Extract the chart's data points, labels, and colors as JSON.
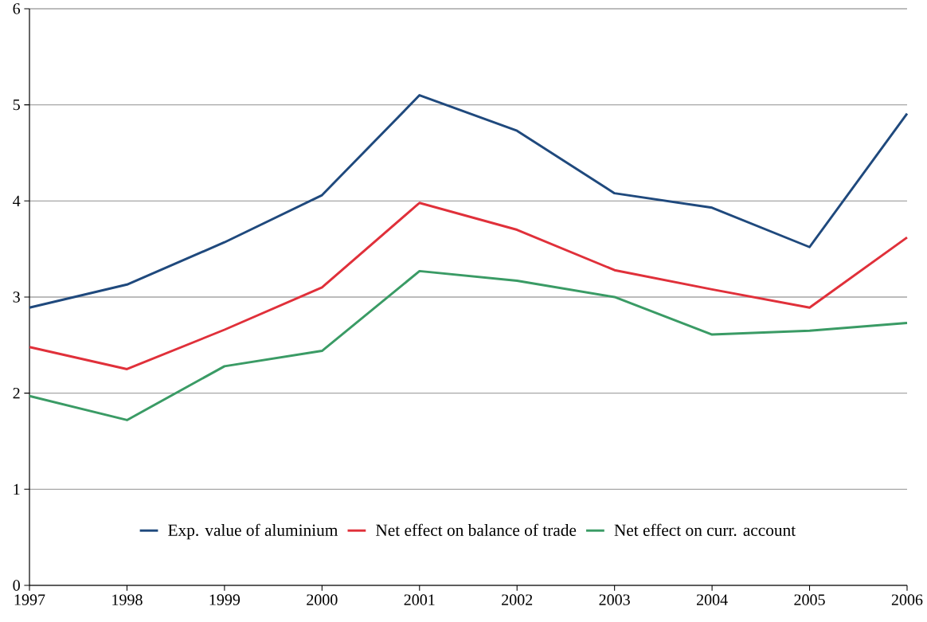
{
  "chart_data": {
    "type": "line",
    "x": [
      1997,
      1998,
      1999,
      2000,
      2001,
      2002,
      2003,
      2004,
      2005,
      2006
    ],
    "xlim": [
      1997,
      2006
    ],
    "xticks": [
      1997,
      1998,
      1999,
      2000,
      2001,
      2002,
      2003,
      2004,
      2005,
      2006
    ],
    "ylim": [
      0,
      6
    ],
    "yticks": [
      0,
      1,
      2,
      3,
      4,
      5,
      6
    ],
    "grid": "y",
    "legend": "bottom",
    "marker": "none",
    "series": [
      {
        "name": "Exp. value of aluminium",
        "color": "#1f497d",
        "values": [
          2.89,
          3.13,
          3.57,
          4.06,
          5.1,
          4.73,
          4.08,
          3.93,
          3.52,
          4.91
        ]
      },
      {
        "name": "Net effect on balance of trade",
        "color": "#e0303a",
        "values": [
          2.48,
          2.25,
          2.66,
          3.1,
          3.98,
          3.7,
          3.28,
          3.08,
          2.89,
          3.62
        ]
      },
      {
        "name": "Net effect on  curr. account",
        "color": "#3a9b65",
        "values": [
          1.97,
          1.72,
          2.28,
          2.44,
          3.27,
          3.17,
          3.0,
          2.61,
          2.65,
          2.73
        ]
      }
    ]
  }
}
